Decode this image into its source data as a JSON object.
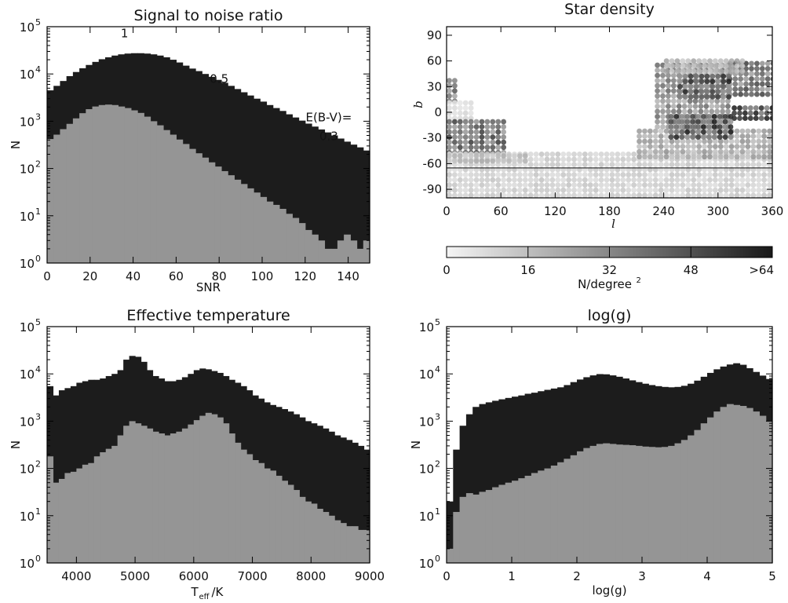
{
  "colors": {
    "all_stars": "#1c1c1c",
    "subset": "#959595",
    "frame": "#000000",
    "axis_text": "#111111"
  },
  "chart_data": [
    {
      "id": "snr",
      "type": "bar",
      "title": "Signal to noise ratio",
      "xlabel": "SNR",
      "ylabel": "N",
      "xlim": [
        0,
        150
      ],
      "ylim": [
        1,
        100000
      ],
      "yscale": "log",
      "xticks": [
        0,
        20,
        40,
        60,
        80,
        100,
        120,
        140
      ],
      "yticks": [
        {
          "value": 1,
          "base": "10",
          "exp": "0"
        },
        {
          "value": 10,
          "base": "10",
          "exp": "1"
        },
        {
          "value": 100,
          "base": "10",
          "exp": "2"
        },
        {
          "value": 1000,
          "base": "10",
          "exp": "3"
        },
        {
          "value": 10000,
          "base": "10",
          "exp": "4"
        },
        {
          "value": 100000,
          "base": "10",
          "exp": "5"
        }
      ],
      "bin_start": 0,
      "bin_width": 3,
      "series": [
        {
          "color": "#1c1c1c",
          "values": [
            4500,
            5600,
            7100,
            9000,
            11000,
            13200,
            15500,
            18000,
            20500,
            22500,
            24500,
            26000,
            27000,
            27500,
            27500,
            27000,
            26000,
            24500,
            22500,
            20000,
            17500,
            15000,
            13000,
            11500,
            10000,
            8700,
            7500,
            6500,
            5600,
            4800,
            4100,
            3500,
            3000,
            2600,
            2200,
            1900,
            1650,
            1400,
            1200,
            1030,
            890,
            770,
            670,
            580,
            500,
            430,
            370,
            320,
            280,
            240
          ]
        },
        {
          "color": "#959595",
          "values": [
            420,
            520,
            680,
            880,
            1150,
            1480,
            1800,
            2050,
            2200,
            2250,
            2200,
            2050,
            1900,
            1700,
            1500,
            1250,
            1000,
            820,
            650,
            520,
            410,
            330,
            260,
            210,
            170,
            135,
            110,
            88,
            72,
            58,
            47,
            38,
            31,
            25,
            20,
            17,
            14,
            11,
            9,
            7,
            5,
            4,
            3,
            2,
            2,
            3,
            4,
            3,
            2,
            3
          ]
        }
      ],
      "annotations": [
        {
          "text": "1",
          "x": 36,
          "y": 60000,
          "anchor": "middle"
        },
        {
          "text": "0.5",
          "x": 80,
          "y": 6500,
          "anchor": "middle"
        },
        {
          "text": "E(B-V)=",
          "x": 131,
          "y": 1000,
          "anchor": "middle"
        },
        {
          "text": "0.3",
          "x": 131,
          "y": 400,
          "anchor": "middle"
        }
      ]
    },
    {
      "id": "teff",
      "type": "bar",
      "title": "Effective temperature",
      "xlabel": "T",
      "xlabel_sub": "eff",
      "xlabel_suffix": "/K",
      "ylabel": "N",
      "xlim": [
        3500,
        9000
      ],
      "ylim": [
        1,
        100000
      ],
      "yscale": "log",
      "xticks": [
        4000,
        5000,
        6000,
        7000,
        8000,
        9000
      ],
      "yticks": [
        {
          "value": 1,
          "base": "10",
          "exp": "0"
        },
        {
          "value": 10,
          "base": "10",
          "exp": "1"
        },
        {
          "value": 100,
          "base": "10",
          "exp": "2"
        },
        {
          "value": 1000,
          "base": "10",
          "exp": "3"
        },
        {
          "value": 10000,
          "base": "10",
          "exp": "4"
        },
        {
          "value": 100000,
          "base": "10",
          "exp": "5"
        }
      ],
      "bin_start": 3500,
      "bin_width": 100,
      "series": [
        {
          "color": "#1c1c1c",
          "values": [
            5500,
            3500,
            4500,
            5000,
            5500,
            6500,
            7000,
            7500,
            7500,
            8000,
            9000,
            10000,
            12000,
            20000,
            24000,
            23000,
            18000,
            12000,
            9000,
            8000,
            7000,
            7000,
            7500,
            8500,
            10000,
            12000,
            13000,
            12500,
            11500,
            10500,
            9000,
            7500,
            6500,
            5500,
            4500,
            3500,
            3000,
            2500,
            2200,
            2000,
            1800,
            1600,
            1400,
            1200,
            1000,
            900,
            800,
            700,
            600,
            500,
            450,
            400,
            350,
            300,
            250
          ]
        },
        {
          "color": "#959595",
          "values": [
            180,
            50,
            60,
            80,
            85,
            100,
            120,
            130,
            180,
            220,
            260,
            300,
            500,
            800,
            1000,
            900,
            800,
            700,
            600,
            550,
            500,
            550,
            600,
            700,
            850,
            1050,
            1300,
            1500,
            1400,
            1200,
            900,
            550,
            350,
            250,
            200,
            150,
            130,
            100,
            90,
            70,
            55,
            45,
            35,
            25,
            20,
            18,
            14,
            12,
            10,
            8,
            7,
            6,
            6,
            5,
            5
          ]
        }
      ]
    },
    {
      "id": "logg",
      "type": "bar",
      "title": "log(g)",
      "xlabel": "log(g)",
      "ylabel": "N",
      "xlim": [
        0,
        5
      ],
      "ylim": [
        1,
        100000
      ],
      "yscale": "log",
      "xticks": [
        0,
        1,
        2,
        3,
        4,
        5
      ],
      "yticks": [
        {
          "value": 1,
          "base": "10",
          "exp": "0"
        },
        {
          "value": 10,
          "base": "10",
          "exp": "1"
        },
        {
          "value": 100,
          "base": "10",
          "exp": "2"
        },
        {
          "value": 1000,
          "base": "10",
          "exp": "3"
        },
        {
          "value": 10000,
          "base": "10",
          "exp": "4"
        },
        {
          "value": 100000,
          "base": "10",
          "exp": "5"
        }
      ],
      "bin_start": 0,
      "bin_width": 0.1,
      "series": [
        {
          "color": "#1c1c1c",
          "values": [
            20,
            250,
            800,
            1400,
            2000,
            2300,
            2500,
            2700,
            2900,
            3100,
            3300,
            3500,
            3800,
            4000,
            4300,
            4600,
            4900,
            5200,
            5800,
            6700,
            7600,
            8500,
            9300,
            9900,
            9800,
            9300,
            8700,
            8000,
            7300,
            6700,
            6200,
            5800,
            5500,
            5300,
            5200,
            5300,
            5600,
            6200,
            7200,
            8700,
            10500,
            12500,
            14300,
            15800,
            16800,
            15600,
            13200,
            11000,
            9200,
            7800
          ]
        },
        {
          "color": "#959595",
          "values": [
            2,
            12,
            25,
            30,
            28,
            32,
            35,
            40,
            45,
            50,
            55,
            62,
            70,
            80,
            90,
            100,
            115,
            135,
            160,
            190,
            230,
            270,
            300,
            330,
            340,
            330,
            320,
            315,
            310,
            300,
            290,
            285,
            280,
            285,
            300,
            340,
            400,
            500,
            650,
            900,
            1200,
            1600,
            2000,
            2300,
            2200,
            2100,
            1900,
            1600,
            1300,
            1000
          ]
        }
      ]
    },
    {
      "id": "density",
      "type": "heatmap",
      "title": "Star density",
      "xlabel": "l",
      "ylabel": "b",
      "xlim": [
        0,
        360
      ],
      "ylim": [
        -100,
        100
      ],
      "xticks": [
        0,
        60,
        120,
        180,
        240,
        300,
        360
      ],
      "yticks": [
        -90,
        -60,
        -30,
        0,
        30,
        60,
        90
      ],
      "reference_line_b": -65,
      "colorbar": {
        "label": "N/degree",
        "label_exp": "2",
        "range": [
          0,
          64
        ],
        "ticks": [
          "0",
          "16",
          "32",
          "48",
          ">64"
        ]
      },
      "cell_deg": 6,
      "regions": [
        {
          "l": [
            0,
            12
          ],
          "b": [
            10,
            38
          ],
          "value": 40
        },
        {
          "l": [
            0,
            25
          ],
          "b": [
            -10,
            10
          ],
          "value": 8
        },
        {
          "l": [
            0,
            66
          ],
          "b": [
            -50,
            -10
          ],
          "value": 45
        },
        {
          "l": [
            0,
            360
          ],
          "b": [
            -100,
            -50
          ],
          "value": 12
        },
        {
          "l": [
            0,
            90
          ],
          "b": [
            -60,
            -50
          ],
          "value": 18
        },
        {
          "l": [
            210,
            360
          ],
          "b": [
            -55,
            -20
          ],
          "value": 24
        },
        {
          "l": [
            230,
            310
          ],
          "b": [
            -20,
            58
          ],
          "value": 34
        },
        {
          "l": [
            310,
            360
          ],
          "b": [
            18,
            60
          ],
          "value": 44
        },
        {
          "l": [
            315,
            360
          ],
          "b": [
            -10,
            5
          ],
          "value": 60
        },
        {
          "l": [
            245,
            315
          ],
          "b": [
            -32,
            -2
          ],
          "value": 52
        },
        {
          "l": [
            255,
            310
          ],
          "b": [
            15,
            45
          ],
          "value": 50
        },
        {
          "l": [
            240,
            330
          ],
          "b": [
            45,
            60
          ],
          "value": 20
        }
      ]
    }
  ]
}
